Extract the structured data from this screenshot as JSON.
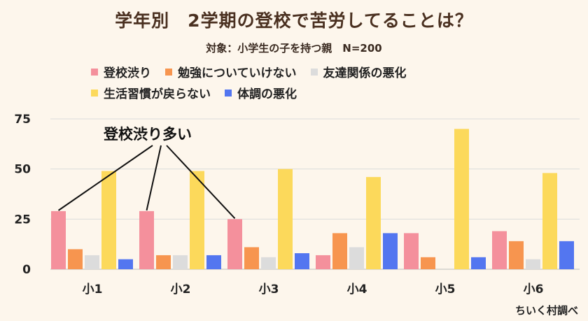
{
  "chart_data": {
    "type": "bar",
    "title": "学年別　2学期の登校で苦労してることは？",
    "subtitle": "対象：小学生の子を持つ親　N=200",
    "categories": [
      "小1",
      "小2",
      "小3",
      "小4",
      "小5",
      "小6"
    ],
    "ylim": [
      0,
      75
    ],
    "yticks": [
      0,
      25,
      50,
      75
    ],
    "grid": true,
    "legend_position": "top",
    "series": [
      {
        "name": "登校渋り",
        "color": "#f4909c",
        "values": [
          29,
          29,
          25,
          7,
          18,
          19
        ]
      },
      {
        "name": "勉強についていけない",
        "color": "#f7954f",
        "values": [
          10,
          7,
          11,
          18,
          6,
          14
        ]
      },
      {
        "name": "友達関係の悪化",
        "color": "#dcdcdc",
        "values": [
          7,
          7,
          6,
          11,
          0,
          5
        ]
      },
      {
        "name": "生活習慣が戻らない",
        "color": "#fcd95b",
        "values": [
          49,
          49,
          50,
          46,
          70,
          48
        ]
      },
      {
        "name": "体調の悪化",
        "color": "#5376f0",
        "values": [
          5,
          7,
          8,
          18,
          6,
          14
        ]
      }
    ],
    "annotation": "登校渋り多い",
    "credit": "ちいく村調べ"
  }
}
